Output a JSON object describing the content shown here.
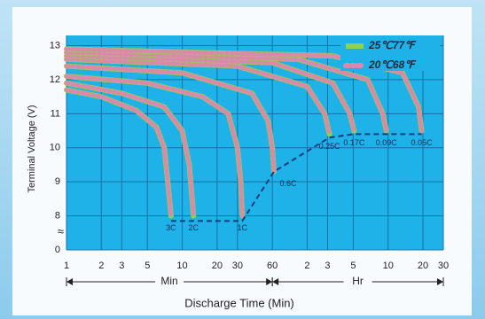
{
  "chart_data": {
    "type": "line",
    "x_label": "Discharge Time (Min)",
    "y_label": "Terminal Voltage (V)",
    "x_log": true,
    "xlim": [
      1,
      1800
    ],
    "xticks": [
      1,
      2,
      3,
      5,
      10,
      20,
      30,
      60,
      {
        "value": 120,
        "label": "2"
      },
      {
        "value": 180,
        "label": "3"
      },
      {
        "value": 300,
        "label": "5"
      },
      {
        "value": 600,
        "label": "10"
      },
      {
        "value": 1200,
        "label": "20"
      },
      {
        "value": 1800,
        "label": "30"
      }
    ],
    "x_ranges": [
      {
        "label": "Min",
        "from": 1,
        "to": 60
      },
      {
        "label": "Hr",
        "from": 60,
        "to": 1800
      }
    ],
    "ylim": [
      0,
      13.3
    ],
    "y_break": [
      0,
      7
    ],
    "yticks": [
      0,
      8,
      9,
      10,
      11,
      12,
      13
    ],
    "grid": true,
    "legend_position": "top-right",
    "legend": [
      {
        "name": "25℃77℉",
        "color": "#8fd14f"
      },
      {
        "name": "20℃68℉",
        "color": "#d98aa8"
      }
    ],
    "series": [
      {
        "name": "3C",
        "x": [
          1,
          2,
          4,
          6,
          7,
          7.5,
          8
        ],
        "values": [
          11.7,
          11.5,
          11.1,
          10.6,
          10.0,
          9.0,
          8.0
        ]
      },
      {
        "name": "2C",
        "x": [
          1,
          3,
          7,
          10,
          11.5,
          12.5
        ],
        "values": [
          11.9,
          11.6,
          11.2,
          10.5,
          9.5,
          8.0
        ]
      },
      {
        "name": "1C",
        "x": [
          1,
          5,
          15,
          25,
          30,
          32,
          33
        ],
        "values": [
          12.1,
          11.9,
          11.5,
          11.0,
          10.0,
          9.0,
          8.0
        ]
      },
      {
        "name": "0.6C",
        "x": [
          1,
          10,
          40,
          55,
          60,
          62
        ],
        "values": [
          12.4,
          12.2,
          11.6,
          10.8,
          10.0,
          9.3
        ]
      },
      {
        "name": "0.25C",
        "x": [
          1,
          30,
          120,
          170,
          187
        ],
        "values": [
          12.6,
          12.4,
          11.8,
          11.0,
          10.4
        ]
      },
      {
        "name": "0.17C",
        "x": [
          1,
          60,
          200,
          280,
          305
        ],
        "values": [
          12.7,
          12.5,
          11.9,
          11.0,
          10.5
        ]
      },
      {
        "name": "0.09C",
        "x": [
          1,
          100,
          400,
          540,
          580
        ],
        "values": [
          12.8,
          12.6,
          12.0,
          11.0,
          10.5
        ]
      },
      {
        "name": "0.05C",
        "x": [
          1,
          200,
          800,
          1100,
          1170
        ],
        "values": [
          12.9,
          12.7,
          12.2,
          11.2,
          10.5
        ]
      }
    ],
    "cutoff_line": {
      "color": "#1a3a7a",
      "x": [
        8,
        33,
        62,
        187,
        305,
        580,
        1170
      ],
      "values": [
        7.85,
        7.85,
        9.3,
        10.3,
        10.4,
        10.4,
        10.4
      ]
    }
  }
}
